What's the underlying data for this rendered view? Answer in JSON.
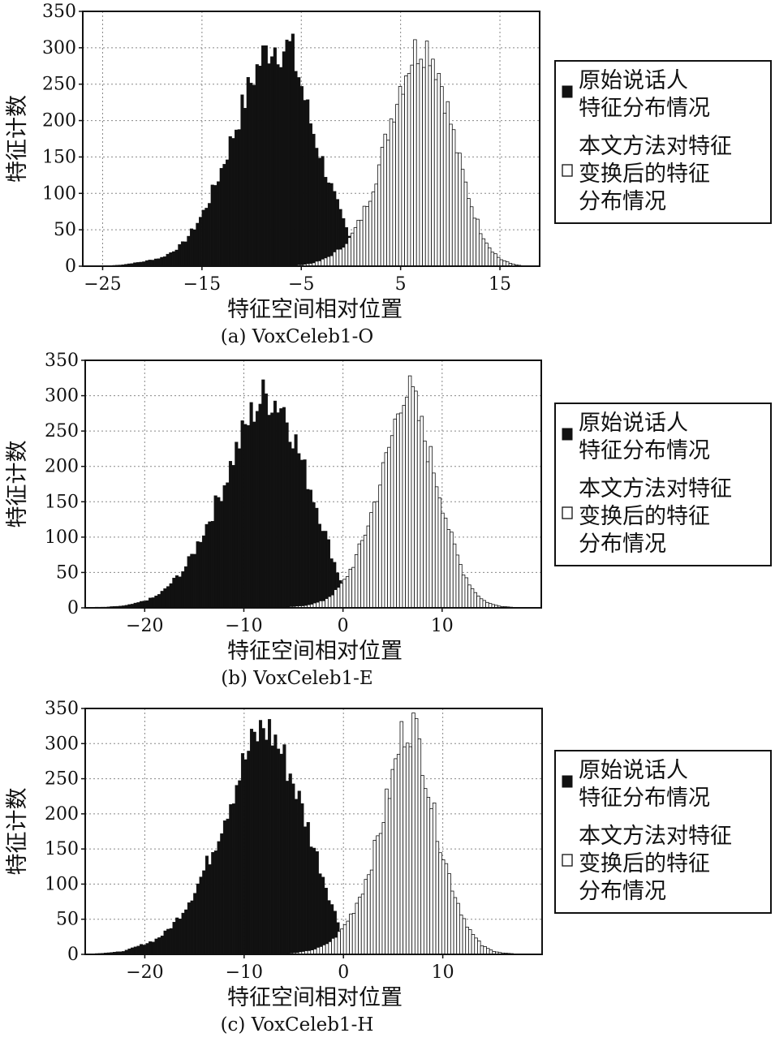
{
  "chart_data": [
    {
      "type": "bar",
      "caption": "(a) VoxCeleb1-O",
      "xlabel": "特征空间相对位置",
      "ylabel": "特征计数",
      "xlim": [
        -27,
        19
      ],
      "ylim": [
        0,
        350
      ],
      "xticks": [
        -25,
        -15,
        -5,
        5,
        15
      ],
      "xtick_labels": [
        "−25",
        "−15",
        "−5",
        "5",
        "15"
      ],
      "yticks": [
        0,
        50,
        100,
        150,
        200,
        250,
        300,
        350
      ],
      "grid": true,
      "bin_width": 0.3,
      "series": [
        {
          "name": "原始说话人特征分布情况",
          "color": "#111111",
          "fill": "solid",
          "x": [
            -24,
            -23,
            -22,
            -21,
            -20,
            -19,
            -18,
            -17,
            -16,
            -15,
            -14,
            -13,
            -12,
            -11,
            -10,
            -9,
            -8,
            -7,
            -6,
            -5,
            -4,
            -3,
            -2,
            -1,
            0,
            1,
            2
          ],
          "values": [
            1,
            2,
            4,
            6,
            9,
            12,
            20,
            30,
            48,
            70,
            100,
            135,
            175,
            215,
            255,
            285,
            305,
            300,
            300,
            250,
            195,
            150,
            110,
            70,
            35,
            15,
            5
          ]
        },
        {
          "name": "本文方法对特征变换后的特征分布情况",
          "color": "#ffffff",
          "fill": "hollow",
          "x": [
            -6,
            -5,
            -4,
            -3,
            -2,
            -1,
            0,
            1,
            2,
            3,
            4,
            5,
            6,
            7,
            8,
            9,
            10,
            11,
            12,
            13,
            14,
            15,
            16,
            17
          ],
          "values": [
            1,
            2,
            4,
            8,
            15,
            25,
            40,
            65,
            100,
            145,
            200,
            250,
            285,
            305,
            300,
            260,
            200,
            140,
            90,
            50,
            25,
            10,
            4,
            1
          ]
        }
      ]
    },
    {
      "type": "bar",
      "caption": "(b) VoxCeleb1-E",
      "xlabel": "特征空间相对位置",
      "ylabel": "特征计数",
      "xlim": [
        -26,
        20
      ],
      "ylim": [
        0,
        350
      ],
      "xticks": [
        -20,
        -10,
        0,
        10
      ],
      "xtick_labels": [
        "−20",
        "−10",
        "0",
        "10"
      ],
      "yticks": [
        0,
        50,
        100,
        150,
        200,
        250,
        300,
        350
      ],
      "grid": true,
      "bin_width": 0.3,
      "series": [
        {
          "name": "原始说话人特征分布情况",
          "color": "#111111",
          "fill": "solid",
          "x": [
            -25,
            -24,
            -23,
            -22,
            -21,
            -20,
            -19,
            -18,
            -17,
            -16,
            -15,
            -14,
            -13,
            -12,
            -11,
            -10,
            -9,
            -8,
            -7,
            -6,
            -5,
            -4,
            -3,
            -2,
            -1,
            0,
            1
          ],
          "values": [
            1,
            1,
            2,
            3,
            6,
            10,
            15,
            25,
            40,
            55,
            80,
            110,
            140,
            175,
            215,
            250,
            280,
            300,
            295,
            285,
            245,
            200,
            160,
            115,
            70,
            30,
            8
          ]
        },
        {
          "name": "本文方法对特征变换后的特征分布情况",
          "color": "#ffffff",
          "fill": "hollow",
          "x": [
            -6,
            -5,
            -4,
            -3,
            -2,
            -1,
            0,
            1,
            2,
            3,
            4,
            5,
            6,
            7,
            8,
            9,
            10,
            11,
            12,
            13,
            14,
            15,
            16,
            17
          ],
          "values": [
            1,
            2,
            3,
            6,
            10,
            20,
            35,
            60,
            95,
            140,
            190,
            245,
            310,
            300,
            250,
            205,
            150,
            95,
            55,
            28,
            12,
            5,
            2,
            1
          ]
        }
      ]
    },
    {
      "type": "bar",
      "caption": "(c) VoxCeleb1-H",
      "xlabel": "特征空间相对位置",
      "ylabel": "特征计数",
      "xlim": [
        -26,
        20
      ],
      "ylim": [
        0,
        350
      ],
      "xticks": [
        -20,
        -10,
        0,
        10
      ],
      "xtick_labels": [
        "−20",
        "−10",
        "0",
        "10"
      ],
      "yticks": [
        0,
        50,
        100,
        150,
        200,
        250,
        300,
        350
      ],
      "grid": true,
      "bin_width": 0.3,
      "series": [
        {
          "name": "原始说话人特征分布情况",
          "color": "#111111",
          "fill": "solid",
          "x": [
            -25,
            -24,
            -23,
            -22,
            -21,
            -20,
            -19,
            -18,
            -17,
            -16,
            -15,
            -14,
            -13,
            -12,
            -11,
            -10,
            -9,
            -8,
            -7,
            -6,
            -5,
            -4,
            -3,
            -2,
            -1,
            0,
            1
          ],
          "values": [
            1,
            2,
            3,
            5,
            10,
            15,
            20,
            30,
            45,
            65,
            90,
            120,
            155,
            195,
            235,
            275,
            305,
            325,
            310,
            280,
            245,
            200,
            155,
            110,
            65,
            25,
            8
          ]
        },
        {
          "name": "本文方法对特征变换后的特征分布情况",
          "color": "#ffffff",
          "fill": "hollow",
          "x": [
            -6,
            -5,
            -4,
            -3,
            -2,
            -1,
            0,
            1,
            2,
            3,
            4,
            5,
            6,
            7,
            8,
            9,
            10,
            11,
            12,
            13,
            14,
            15,
            16,
            17
          ],
          "values": [
            1,
            2,
            4,
            7,
            12,
            22,
            38,
            62,
            95,
            140,
            195,
            255,
            320,
            330,
            280,
            205,
            145,
            95,
            55,
            28,
            12,
            5,
            2,
            1
          ]
        }
      ]
    }
  ],
  "legend": {
    "black_label_lines": [
      "原始说话人",
      "特征分布情况"
    ],
    "white_label_lines": [
      "本文方法对特征",
      "变换后的特征",
      "分布情况"
    ]
  }
}
